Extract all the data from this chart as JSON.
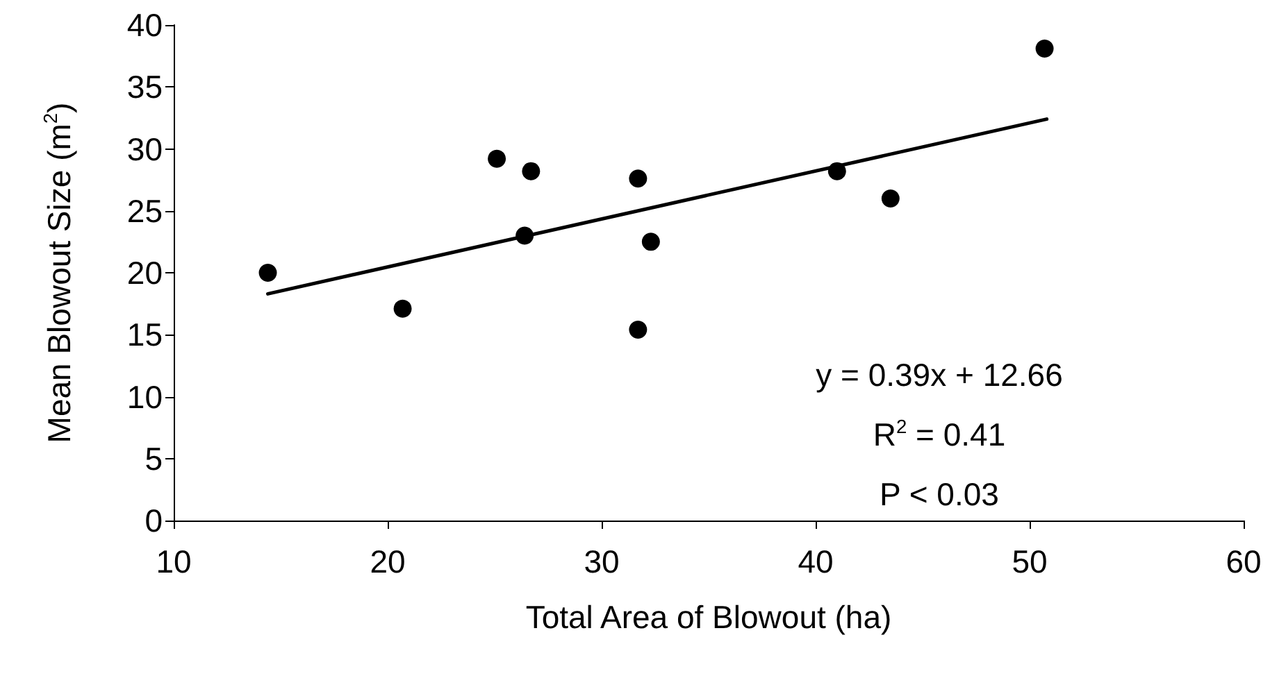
{
  "chart_data": {
    "type": "scatter",
    "xlabel": "Total Area of Blowout (ha)",
    "ylabel": "Mean Blowout Size (m$^{2}$)",
    "x": [
      14.4,
      20.7,
      25.1,
      26.7,
      26.4,
      31.7,
      32.3,
      31.7,
      41.0,
      43.5,
      50.7
    ],
    "series": [
      {
        "color": "#000000",
        "marker": "circle",
        "values": [
          20.0,
          17.1,
          29.2,
          28.2,
          23.0,
          27.6,
          22.5,
          15.4,
          28.2,
          26.0,
          38.1
        ]
      },
      {
        "type": "line",
        "color": "#000000",
        "line_style": "solid",
        "marker": "none",
        "x": [
          14.4,
          50.8
        ],
        "values": [
          18.3,
          32.4
        ]
      }
    ],
    "annotations": [
      "y = 0.39x + 12.66",
      "R$^{2}$ = 0.41",
      "P < 0.03"
    ],
    "xlim": [
      10,
      60
    ],
    "xticks": [
      10,
      20,
      30,
      40,
      50,
      60
    ],
    "ylim": [
      0,
      40
    ],
    "yticks": [
      0,
      5,
      10,
      15,
      20,
      25,
      30,
      35,
      40
    ],
    "grid": false
  }
}
